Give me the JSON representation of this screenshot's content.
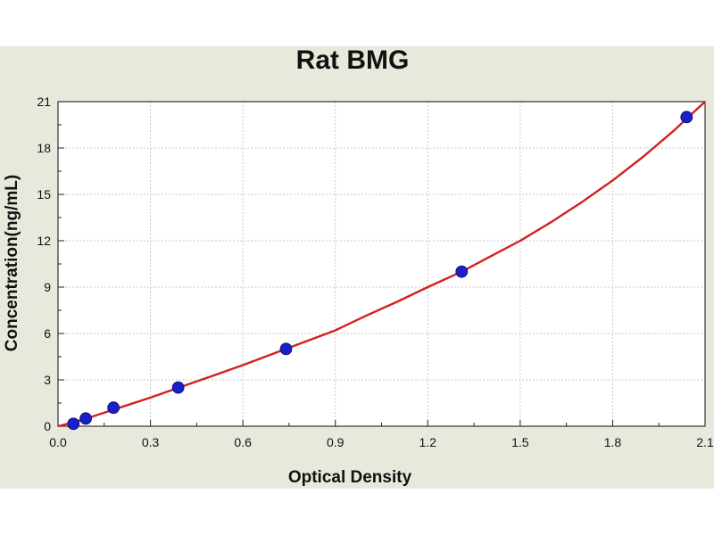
{
  "chart_data": {
    "type": "scatter",
    "title": "Rat BMG",
    "xlabel": "Optical Density",
    "ylabel": "Concentration(ng/mL)",
    "xlim": [
      0,
      2.1
    ],
    "ylim": [
      0,
      21
    ],
    "x_ticks": [
      0.0,
      0.3,
      0.6,
      0.9,
      1.2,
      1.5,
      1.8,
      2.1
    ],
    "x_tick_labels": [
      "0.0",
      "0.3",
      "0.6",
      "0.9",
      "1.2",
      "1.5",
      "1.8",
      "2.1"
    ],
    "y_ticks": [
      0,
      3,
      6,
      9,
      12,
      15,
      18,
      21
    ],
    "y_tick_labels": [
      "0",
      "3",
      "6",
      "9",
      "12",
      "15",
      "18",
      "21"
    ],
    "grid": true,
    "points": [
      {
        "x": 0.05,
        "y": 0.16
      },
      {
        "x": 0.09,
        "y": 0.5
      },
      {
        "x": 0.18,
        "y": 1.2
      },
      {
        "x": 0.39,
        "y": 2.5
      },
      {
        "x": 0.74,
        "y": 5.0
      },
      {
        "x": 1.31,
        "y": 10.0
      },
      {
        "x": 2.04,
        "y": 20.0
      }
    ],
    "fit_curve": [
      {
        "x": 0.0,
        "y": 0.0
      },
      {
        "x": 0.05,
        "y": 0.25
      },
      {
        "x": 0.1,
        "y": 0.55
      },
      {
        "x": 0.2,
        "y": 1.2
      },
      {
        "x": 0.3,
        "y": 1.85
      },
      {
        "x": 0.4,
        "y": 2.55
      },
      {
        "x": 0.5,
        "y": 3.25
      },
      {
        "x": 0.6,
        "y": 3.95
      },
      {
        "x": 0.74,
        "y": 5.0
      },
      {
        "x": 0.9,
        "y": 6.2
      },
      {
        "x": 1.0,
        "y": 7.15
      },
      {
        "x": 1.1,
        "y": 8.05
      },
      {
        "x": 1.2,
        "y": 9.0
      },
      {
        "x": 1.31,
        "y": 10.0
      },
      {
        "x": 1.4,
        "y": 10.95
      },
      {
        "x": 1.5,
        "y": 12.0
      },
      {
        "x": 1.6,
        "y": 13.2
      },
      {
        "x": 1.7,
        "y": 14.5
      },
      {
        "x": 1.8,
        "y": 15.9
      },
      {
        "x": 1.9,
        "y": 17.45
      },
      {
        "x": 2.0,
        "y": 19.15
      },
      {
        "x": 2.04,
        "y": 19.9
      },
      {
        "x": 2.1,
        "y": 21.0
      }
    ],
    "colors": {
      "background": "#e8e8dc",
      "plot_area": "#ffffff",
      "grid": "#c8c8c8",
      "curve": "#d42020",
      "point_fill": "#1a20c8",
      "text": "#111111"
    }
  }
}
